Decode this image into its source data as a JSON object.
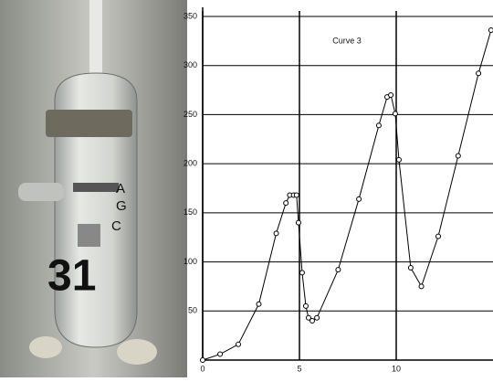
{
  "photo": {
    "labels": [
      "A",
      "G",
      "C"
    ],
    "handwriting": "31"
  },
  "chart_data": {
    "type": "line",
    "title": "Curve 3",
    "x": [
      0,
      0.9,
      1.84,
      2.9,
      3.8,
      4.3,
      4.5,
      4.7,
      4.85,
      4.95,
      5.14,
      5.33,
      5.47,
      5.66,
      5.9,
      7.0,
      8.07,
      9.1,
      9.53,
      9.72,
      9.95,
      10.14,
      10.75,
      11.3,
      12.17,
      13.2,
      14.25,
      14.9
    ],
    "series": [
      {
        "color": "#000000",
        "values": [
          0,
          6,
          16,
          57,
          129,
          160,
          168,
          168,
          168,
          140,
          89,
          55,
          43,
          40,
          43,
          92,
          164,
          239,
          268,
          270,
          251,
          204,
          94,
          75,
          126,
          208,
          292,
          336
        ]
      }
    ],
    "xlim": [
      0,
      15
    ],
    "ylim": [
      0,
      350
    ],
    "xticks": [
      0,
      5,
      10
    ],
    "yticks": [
      50,
      100,
      150,
      200,
      250,
      300,
      350
    ],
    "grid": true
  }
}
